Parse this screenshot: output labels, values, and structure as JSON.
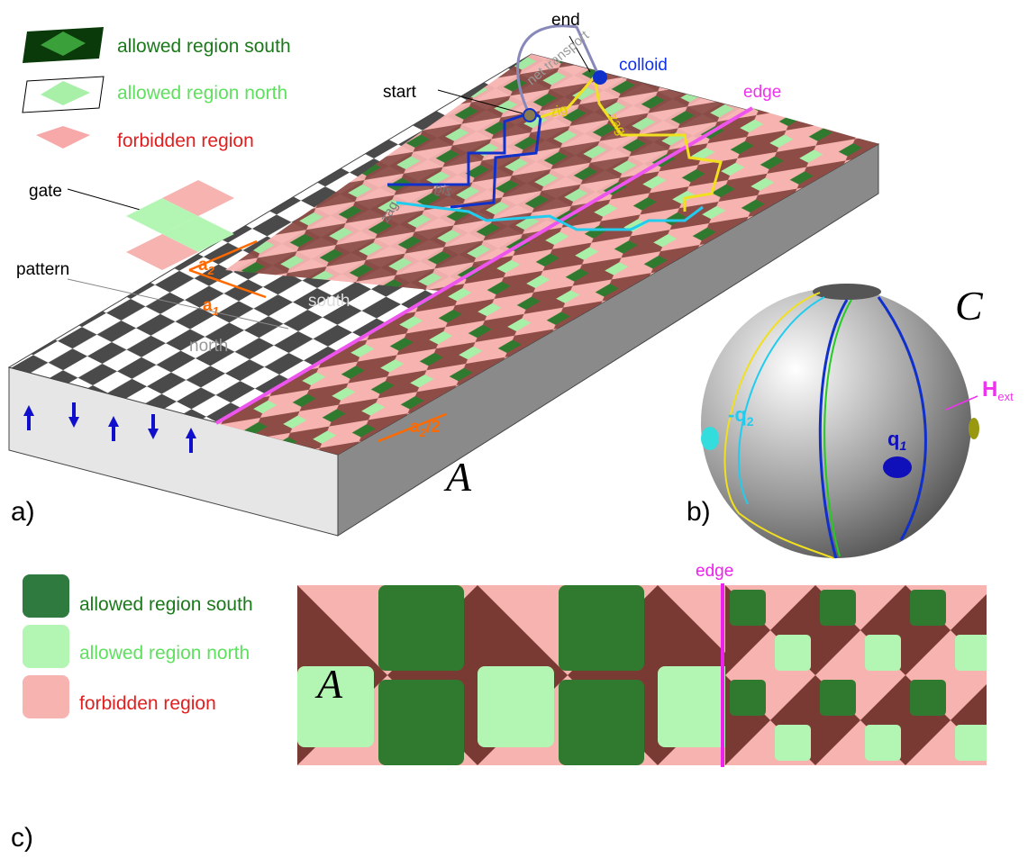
{
  "panel_a": {
    "legend": [
      "allowed region south",
      "allowed region north",
      "forbidden region"
    ],
    "gate": "gate",
    "pattern": "pattern",
    "north": "north",
    "south": "south",
    "a2": {
      "text": "a",
      "sub": "2"
    },
    "a1": {
      "text": "a",
      "sub": "1"
    },
    "a2_half": {
      "text": "a",
      "sub": "2",
      "tail": "/2"
    },
    "start": "start",
    "end": "end",
    "colloid": "colloid",
    "edge": "edge",
    "net_transport": "net transport",
    "zig": "zig",
    "zag": "zag",
    "zig_back": "zig",
    "zag_back": "zag",
    "region": "A",
    "label": "a)"
  },
  "panel_b": {
    "space": "C",
    "field": {
      "text": "H",
      "sub": "ext"
    },
    "q2": {
      "text": "-q",
      "sub": "2"
    },
    "q1": {
      "text": "q",
      "sub": "1"
    },
    "label": "b)"
  },
  "panel_c": {
    "legend": [
      "allowed region south",
      "allowed region north",
      "forbidden region"
    ],
    "edge": "edge",
    "region": "A",
    "label": "c)"
  }
}
